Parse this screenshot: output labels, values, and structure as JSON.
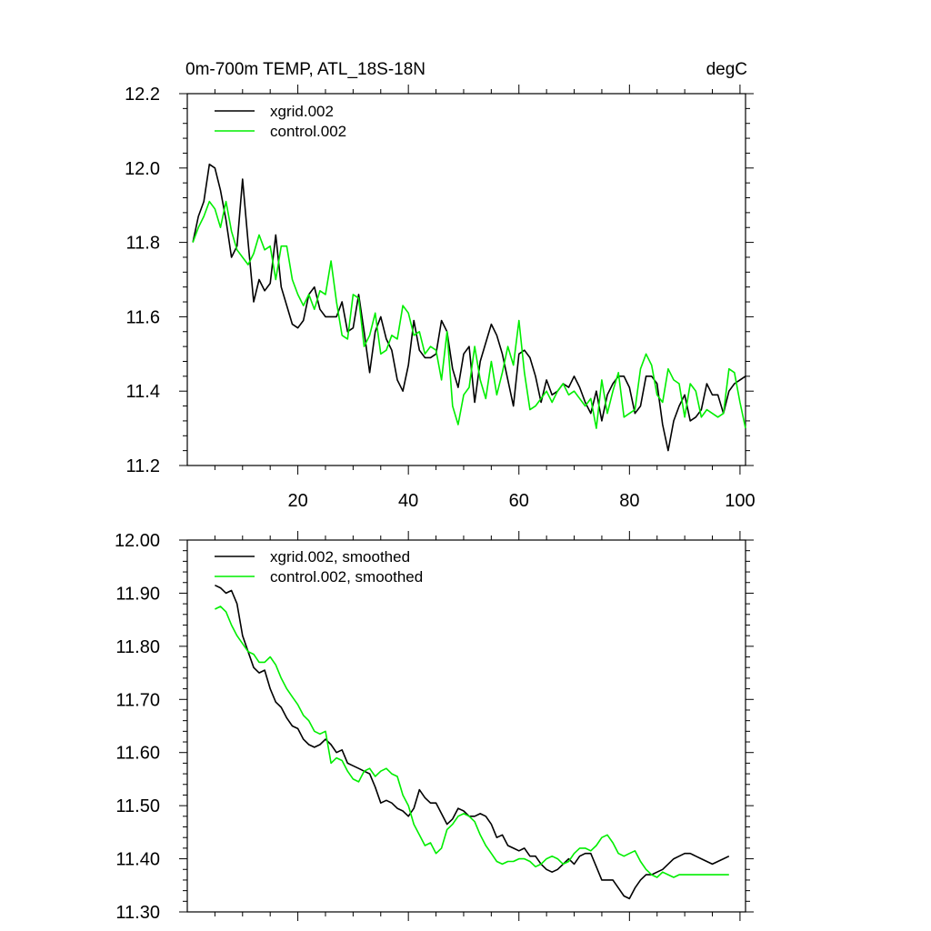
{
  "colors": {
    "xgrid": "#000000",
    "control": "#00ee00",
    "axis": "#000000"
  },
  "chart_data": [
    {
      "type": "line",
      "title": "0m-700m TEMP, ATL_18S-18N",
      "units": "degC",
      "xlabel": "",
      "ylabel": "",
      "xlim": [
        0,
        101
      ],
      "ylim": [
        11.2,
        12.2
      ],
      "xticks": [
        20,
        40,
        60,
        80,
        100
      ],
      "xtick_labels": [
        "20",
        "40",
        "60",
        "80",
        "100"
      ],
      "yticks": [
        11.2,
        11.4,
        11.6,
        11.8,
        12.0,
        12.2
      ],
      "ytick_labels": [
        "11.2",
        "11.4",
        "11.6",
        "11.8",
        "12.0",
        "12.2"
      ],
      "legend_position": "top-left",
      "series": [
        {
          "name": "xgrid.002",
          "color_key": "xgrid",
          "x": [
            1,
            2,
            3,
            4,
            5,
            6,
            7,
            8,
            9,
            10,
            11,
            12,
            13,
            14,
            15,
            16,
            17,
            18,
            19,
            20,
            21,
            22,
            23,
            24,
            25,
            26,
            27,
            28,
            29,
            30,
            31,
            32,
            33,
            34,
            35,
            36,
            37,
            38,
            39,
            40,
            41,
            42,
            43,
            44,
            45,
            46,
            47,
            48,
            49,
            50,
            51,
            52,
            53,
            54,
            55,
            56,
            57,
            58,
            59,
            60,
            61,
            62,
            63,
            64,
            65,
            66,
            67,
            68,
            69,
            70,
            71,
            72,
            73,
            74,
            75,
            76,
            77,
            78,
            79,
            80,
            81,
            82,
            83,
            84,
            85,
            86,
            87,
            88,
            89,
            90,
            91,
            92,
            93,
            94,
            95,
            96,
            97,
            98,
            99,
            100,
            101
          ],
          "values": [
            11.8,
            11.87,
            11.91,
            12.01,
            12.0,
            11.94,
            11.86,
            11.76,
            11.79,
            11.97,
            11.8,
            11.64,
            11.7,
            11.67,
            11.69,
            11.82,
            11.68,
            11.63,
            11.58,
            11.57,
            11.59,
            11.66,
            11.68,
            11.62,
            11.6,
            11.6,
            11.6,
            11.64,
            11.56,
            11.57,
            11.66,
            11.56,
            11.45,
            11.56,
            11.6,
            11.54,
            11.51,
            11.43,
            11.4,
            11.47,
            11.59,
            11.51,
            11.49,
            11.49,
            11.5,
            11.59,
            11.56,
            11.46,
            11.41,
            11.5,
            11.52,
            11.37,
            11.48,
            11.53,
            11.58,
            11.55,
            11.5,
            11.43,
            11.36,
            11.5,
            11.51,
            11.49,
            11.44,
            11.37,
            11.43,
            11.39,
            11.4,
            11.42,
            11.41,
            11.44,
            11.41,
            11.37,
            11.34,
            11.4,
            11.32,
            11.39,
            11.42,
            11.44,
            11.44,
            11.41,
            11.34,
            11.36,
            11.44,
            11.44,
            11.42,
            11.31,
            11.24,
            11.32,
            11.36,
            11.39,
            11.32,
            11.33,
            11.35,
            11.42,
            11.39,
            11.39,
            11.34,
            11.4,
            11.42,
            11.43,
            11.44
          ]
        },
        {
          "name": "control.002",
          "color_key": "control",
          "x": [
            1,
            2,
            3,
            4,
            5,
            6,
            7,
            8,
            9,
            10,
            11,
            12,
            13,
            14,
            15,
            16,
            17,
            18,
            19,
            20,
            21,
            22,
            23,
            24,
            25,
            26,
            27,
            28,
            29,
            30,
            31,
            32,
            33,
            34,
            35,
            36,
            37,
            38,
            39,
            40,
            41,
            42,
            43,
            44,
            45,
            46,
            47,
            48,
            49,
            50,
            51,
            52,
            53,
            54,
            55,
            56,
            57,
            58,
            59,
            60,
            61,
            62,
            63,
            64,
            65,
            66,
            67,
            68,
            69,
            70,
            71,
            72,
            73,
            74,
            75,
            76,
            77,
            78,
            79,
            80,
            81,
            82,
            83,
            84,
            85,
            86,
            87,
            88,
            89,
            90,
            91,
            92,
            93,
            94,
            95,
            96,
            97,
            98,
            99,
            100,
            101
          ],
          "values": [
            11.8,
            11.84,
            11.87,
            11.91,
            11.89,
            11.84,
            11.91,
            11.83,
            11.78,
            11.76,
            11.74,
            11.77,
            11.82,
            11.78,
            11.79,
            11.7,
            11.79,
            11.79,
            11.7,
            11.66,
            11.63,
            11.66,
            11.62,
            11.67,
            11.66,
            11.75,
            11.64,
            11.55,
            11.54,
            11.66,
            11.65,
            11.52,
            11.55,
            11.61,
            11.5,
            11.51,
            11.55,
            11.54,
            11.63,
            11.61,
            11.55,
            11.56,
            11.5,
            11.52,
            11.51,
            11.43,
            11.56,
            11.36,
            11.31,
            11.39,
            11.41,
            11.52,
            11.43,
            11.38,
            11.48,
            11.39,
            11.45,
            11.52,
            11.47,
            11.59,
            11.45,
            11.35,
            11.36,
            11.38,
            11.4,
            11.37,
            11.4,
            11.42,
            11.39,
            11.4,
            11.38,
            11.36,
            11.38,
            11.3,
            11.43,
            11.34,
            11.4,
            11.45,
            11.33,
            11.34,
            11.35,
            11.46,
            11.5,
            11.47,
            11.39,
            11.37,
            11.46,
            11.43,
            11.42,
            11.33,
            11.42,
            11.4,
            11.33,
            11.35,
            11.34,
            11.33,
            11.34,
            11.46,
            11.45,
            11.37,
            11.3
          ]
        }
      ]
    },
    {
      "type": "line",
      "title": "",
      "xlabel": "",
      "ylabel": "",
      "xlim": [
        0,
        101
      ],
      "ylim": [
        11.3,
        12.0
      ],
      "xticks": [
        20,
        40,
        60,
        80,
        100
      ],
      "xtick_labels": [],
      "yticks": [
        11.3,
        11.4,
        11.5,
        11.6,
        11.7,
        11.8,
        11.9,
        12.0
      ],
      "ytick_labels": [
        "11.30",
        "11.40",
        "11.50",
        "11.60",
        "11.70",
        "11.80",
        "11.90",
        "12.00"
      ],
      "legend_position": "top-left",
      "series": [
        {
          "name": "xgrid.002, smoothed",
          "color_key": "xgrid",
          "x": [
            5,
            6,
            7,
            8,
            9,
            10,
            11,
            12,
            13,
            14,
            15,
            16,
            17,
            18,
            19,
            20,
            21,
            22,
            23,
            24,
            25,
            26,
            27,
            28,
            29,
            30,
            31,
            32,
            33,
            34,
            35,
            36,
            37,
            38,
            39,
            40,
            41,
            42,
            43,
            44,
            45,
            46,
            47,
            48,
            49,
            50,
            51,
            52,
            53,
            54,
            55,
            56,
            57,
            58,
            59,
            60,
            61,
            62,
            63,
            64,
            65,
            66,
            67,
            68,
            69,
            70,
            71,
            72,
            73,
            74,
            75,
            76,
            77,
            78,
            79,
            80,
            81,
            82,
            83,
            84,
            85,
            86,
            87,
            88,
            89,
            90,
            91,
            92,
            93,
            94,
            95,
            96,
            97,
            98
          ],
          "values": [
            11.915,
            11.91,
            11.9,
            11.905,
            11.88,
            11.82,
            11.79,
            11.76,
            11.75,
            11.755,
            11.72,
            11.695,
            11.685,
            11.665,
            11.65,
            11.645,
            11.625,
            11.615,
            11.61,
            11.615,
            11.625,
            11.615,
            11.6,
            11.605,
            11.58,
            11.575,
            11.57,
            11.565,
            11.56,
            11.535,
            11.505,
            11.51,
            11.505,
            11.495,
            11.49,
            11.48,
            11.495,
            11.53,
            11.515,
            11.505,
            11.505,
            11.485,
            11.465,
            11.475,
            11.495,
            11.49,
            11.48,
            11.48,
            11.485,
            11.48,
            11.465,
            11.44,
            11.445,
            11.425,
            11.42,
            11.415,
            11.42,
            11.405,
            11.405,
            11.39,
            11.38,
            11.375,
            11.38,
            11.39,
            11.4,
            11.39,
            11.405,
            11.41,
            11.41,
            11.385,
            11.36,
            11.36,
            11.36,
            11.345,
            11.33,
            11.325,
            11.345,
            11.36,
            11.37,
            11.37,
            11.375,
            11.38,
            11.39,
            11.4,
            11.405,
            11.41,
            11.41,
            11.405,
            11.4,
            11.395,
            11.39,
            11.395,
            11.4,
            11.405
          ]
        },
        {
          "name": "control.002, smoothed",
          "color_key": "control",
          "x": [
            5,
            6,
            7,
            8,
            9,
            10,
            11,
            12,
            13,
            14,
            15,
            16,
            17,
            18,
            19,
            20,
            21,
            22,
            23,
            24,
            25,
            26,
            27,
            28,
            29,
            30,
            31,
            32,
            33,
            34,
            35,
            36,
            37,
            38,
            39,
            40,
            41,
            42,
            43,
            44,
            45,
            46,
            47,
            48,
            49,
            50,
            51,
            52,
            53,
            54,
            55,
            56,
            57,
            58,
            59,
            60,
            61,
            62,
            63,
            64,
            65,
            66,
            67,
            68,
            69,
            70,
            71,
            72,
            73,
            74,
            75,
            76,
            77,
            78,
            79,
            80,
            81,
            82,
            83,
            84,
            85,
            86,
            87,
            88,
            89,
            90,
            91,
            92,
            93,
            94,
            95,
            96,
            97,
            98
          ],
          "values": [
            11.87,
            11.875,
            11.865,
            11.84,
            11.82,
            11.805,
            11.79,
            11.785,
            11.77,
            11.77,
            11.78,
            11.765,
            11.74,
            11.72,
            11.705,
            11.69,
            11.67,
            11.66,
            11.64,
            11.635,
            11.64,
            11.58,
            11.59,
            11.585,
            11.565,
            11.55,
            11.545,
            11.565,
            11.57,
            11.555,
            11.565,
            11.57,
            11.56,
            11.555,
            11.52,
            11.5,
            11.465,
            11.445,
            11.425,
            11.43,
            11.41,
            11.42,
            11.455,
            11.465,
            11.48,
            11.485,
            11.48,
            11.47,
            11.445,
            11.425,
            11.41,
            11.395,
            11.39,
            11.395,
            11.395,
            11.4,
            11.4,
            11.395,
            11.385,
            11.39,
            11.4,
            11.405,
            11.4,
            11.39,
            11.395,
            11.41,
            11.42,
            11.42,
            11.415,
            11.425,
            11.44,
            11.445,
            11.43,
            11.41,
            11.405,
            11.41,
            11.415,
            11.395,
            11.38,
            11.37,
            11.365,
            11.375,
            11.37,
            11.365,
            11.37,
            11.37,
            11.37,
            11.37,
            11.37,
            11.37,
            11.37,
            11.37,
            11.37,
            11.37
          ]
        }
      ]
    }
  ]
}
